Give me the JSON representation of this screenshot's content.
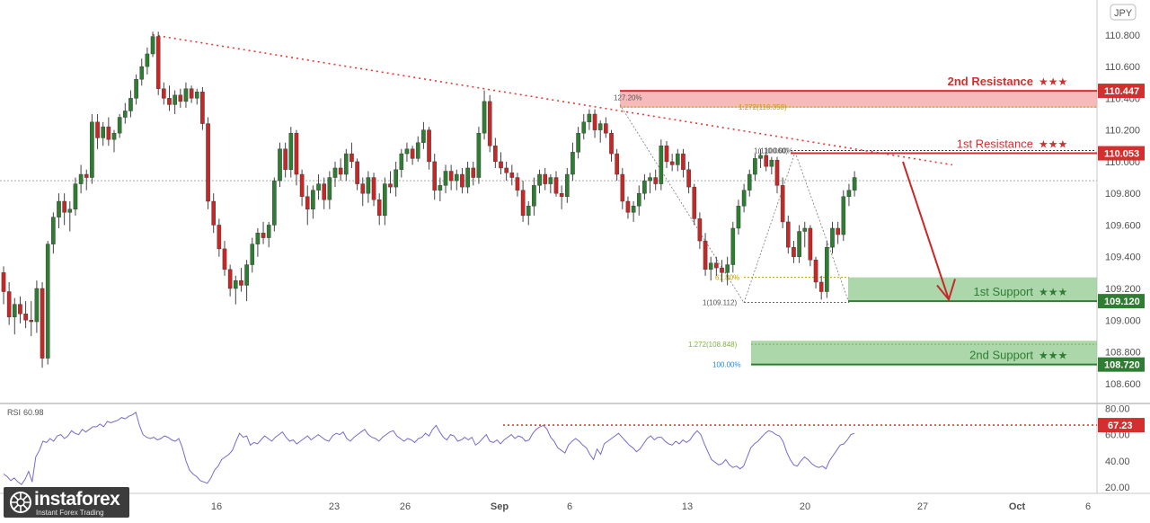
{
  "chart_data": {
    "type": "candlestick",
    "symbol_badge": "JPY",
    "currency_code": "JPY",
    "rsi_label": "RSI",
    "rsi_value": "60.98",
    "price_axis": {
      "ylim": [
        108.48,
        111.02
      ],
      "ticks": [
        "110.800",
        "110.600",
        "110.400",
        "110.200",
        "110.000",
        "109.800",
        "109.600",
        "109.400",
        "109.200",
        "109.000",
        "108.800",
        "108.600"
      ]
    },
    "rsi_axis": {
      "ylim": [
        16,
        83
      ],
      "ticks": [
        "80.00",
        "60.00",
        "40.00",
        "20.00"
      ]
    },
    "x_ticks": [
      "16",
      "23",
      "26",
      "Sep",
      "6",
      "13",
      "20",
      "27",
      "Oct",
      "6"
    ],
    "current_price": 109.88,
    "levels": [
      {
        "name": "2nd Resistance",
        "stars": "★★★",
        "price": 110.447,
        "label": "110.447",
        "color": "#d32f2f"
      },
      {
        "name": "1st Resistance",
        "stars": "★★★",
        "price": 110.053,
        "label": "110.053",
        "color": "#d32f2f"
      },
      {
        "name": "1st Support",
        "stars": "★★★",
        "price": 109.12,
        "label": "109.120",
        "color": "#2e7d32"
      },
      {
        "name": "2nd Support",
        "stars": "★★★",
        "price": 108.72,
        "label": "108.720",
        "color": "#2e7d32"
      }
    ],
    "zones": [
      {
        "from": 110.447,
        "to": 110.34,
        "color": "#f4a3a3"
      },
      {
        "from": 109.27,
        "to": 109.12,
        "color": "#8fc98f"
      },
      {
        "from": 108.87,
        "to": 108.72,
        "color": "#8fc98f"
      }
    ],
    "fib_labels": [
      {
        "text": "127.20%",
        "price": 110.405
      },
      {
        "text": "1.272(110.350)",
        "price": 110.345
      },
      {
        "text": "1(110.060)",
        "price": 110.07
      },
      {
        "text": "100.00%",
        "price": 110.07
      },
      {
        "text": "61.80%",
        "price": 109.27
      },
      {
        "text": "1(109.112)",
        "price": 109.112
      },
      {
        "text": "1.272(108.848)",
        "price": 108.848
      },
      {
        "text": "100.00%",
        "price": 108.72
      }
    ],
    "rsi_level": {
      "value": 67.23,
      "label": "67.23"
    },
    "candles": [
      [
        109.3,
        109.34,
        109.1,
        109.18
      ],
      [
        109.18,
        109.24,
        108.97,
        109.02
      ],
      [
        109.02,
        109.14,
        108.91,
        109.1
      ],
      [
        109.1,
        109.15,
        108.98,
        109.04
      ],
      [
        109.04,
        109.12,
        108.95,
        109.0
      ],
      [
        109.0,
        109.12,
        108.9,
        108.99
      ],
      [
        108.99,
        109.25,
        108.92,
        109.2
      ],
      [
        109.2,
        109.24,
        108.7,
        108.76
      ],
      [
        108.76,
        109.5,
        108.72,
        109.48
      ],
      [
        109.48,
        109.68,
        109.42,
        109.65
      ],
      [
        109.65,
        109.8,
        109.58,
        109.75
      ],
      [
        109.75,
        109.8,
        109.6,
        109.68
      ],
      [
        109.68,
        109.75,
        109.56,
        109.7
      ],
      [
        109.7,
        109.9,
        109.66,
        109.86
      ],
      [
        109.86,
        109.98,
        109.8,
        109.92
      ],
      [
        109.92,
        109.95,
        109.82,
        109.9
      ],
      [
        109.9,
        110.3,
        109.86,
        110.25
      ],
      [
        110.25,
        110.3,
        110.08,
        110.15
      ],
      [
        110.15,
        110.25,
        110.1,
        110.22
      ],
      [
        110.22,
        110.28,
        110.1,
        110.14
      ],
      [
        110.14,
        110.2,
        110.06,
        110.18
      ],
      [
        110.18,
        110.3,
        110.15,
        110.28
      ],
      [
        110.28,
        110.37,
        110.24,
        110.32
      ],
      [
        110.32,
        110.45,
        110.28,
        110.4
      ],
      [
        110.4,
        110.55,
        110.36,
        110.52
      ],
      [
        110.52,
        110.65,
        110.48,
        110.6
      ],
      [
        110.6,
        110.72,
        110.55,
        110.68
      ],
      [
        110.68,
        110.82,
        110.66,
        110.79
      ],
      [
        110.79,
        110.82,
        110.42,
        110.46
      ],
      [
        110.46,
        110.5,
        110.36,
        110.4
      ],
      [
        110.4,
        110.48,
        110.32,
        110.36
      ],
      [
        110.36,
        110.45,
        110.3,
        110.42
      ],
      [
        110.42,
        110.46,
        110.34,
        110.38
      ],
      [
        110.38,
        110.5,
        110.34,
        110.46
      ],
      [
        110.46,
        110.48,
        110.37,
        110.4
      ],
      [
        110.4,
        110.46,
        110.36,
        110.44
      ],
      [
        110.44,
        110.47,
        110.2,
        110.24
      ],
      [
        110.24,
        110.28,
        109.7,
        109.75
      ],
      [
        109.75,
        109.8,
        109.55,
        109.6
      ],
      [
        109.6,
        109.64,
        109.4,
        109.45
      ],
      [
        109.45,
        109.5,
        109.28,
        109.32
      ],
      [
        109.32,
        109.35,
        109.15,
        109.2
      ],
      [
        109.2,
        109.28,
        109.1,
        109.25
      ],
      [
        109.25,
        109.33,
        109.18,
        109.22
      ],
      [
        109.22,
        109.38,
        109.12,
        109.35
      ],
      [
        109.35,
        109.52,
        109.3,
        109.48
      ],
      [
        109.48,
        109.58,
        109.4,
        109.55
      ],
      [
        109.55,
        109.62,
        109.48,
        109.52
      ],
      [
        109.52,
        109.62,
        109.46,
        109.6
      ],
      [
        109.6,
        109.9,
        109.56,
        109.88
      ],
      [
        109.88,
        110.12,
        109.84,
        110.08
      ],
      [
        110.08,
        110.12,
        109.9,
        109.95
      ],
      [
        109.95,
        110.22,
        109.9,
        110.18
      ],
      [
        110.18,
        110.2,
        109.85,
        109.92
      ],
      [
        109.92,
        109.95,
        109.72,
        109.78
      ],
      [
        109.78,
        109.85,
        109.6,
        109.7
      ],
      [
        109.7,
        109.85,
        109.64,
        109.82
      ],
      [
        109.82,
        109.92,
        109.76,
        109.86
      ],
      [
        109.86,
        109.9,
        109.7,
        109.76
      ],
      [
        109.76,
        109.94,
        109.7,
        109.9
      ],
      [
        109.9,
        110.0,
        109.84,
        109.96
      ],
      [
        109.96,
        110.02,
        109.88,
        109.92
      ],
      [
        109.92,
        110.08,
        109.88,
        110.05
      ],
      [
        110.05,
        110.12,
        109.96,
        110.0
      ],
      [
        110.0,
        110.02,
        109.82,
        109.86
      ],
      [
        109.86,
        109.9,
        109.72,
        109.8
      ],
      [
        109.8,
        109.94,
        109.74,
        109.9
      ],
      [
        109.9,
        109.93,
        109.72,
        109.76
      ],
      [
        109.76,
        109.8,
        109.6,
        109.66
      ],
      [
        109.66,
        109.9,
        109.6,
        109.86
      ],
      [
        109.86,
        109.94,
        109.8,
        109.84
      ],
      [
        109.84,
        110.0,
        109.78,
        109.95
      ],
      [
        109.95,
        110.08,
        109.9,
        110.05
      ],
      [
        110.05,
        110.12,
        110.0,
        110.08
      ],
      [
        110.08,
        110.1,
        109.98,
        110.02
      ],
      [
        110.02,
        110.16,
        110.0,
        110.12
      ],
      [
        110.12,
        110.25,
        110.08,
        110.2
      ],
      [
        110.2,
        110.22,
        109.95,
        110.0
      ],
      [
        110.0,
        110.05,
        109.76,
        109.82
      ],
      [
        109.82,
        109.9,
        109.75,
        109.85
      ],
      [
        109.85,
        109.98,
        109.8,
        109.94
      ],
      [
        109.94,
        109.98,
        109.82,
        109.88
      ],
      [
        109.88,
        109.95,
        109.82,
        109.92
      ],
      [
        109.92,
        109.96,
        109.8,
        109.84
      ],
      [
        109.84,
        110.0,
        109.8,
        109.96
      ],
      [
        109.96,
        110.0,
        109.85,
        109.9
      ],
      [
        109.9,
        110.22,
        109.86,
        110.18
      ],
      [
        110.18,
        110.45,
        110.14,
        110.38
      ],
      [
        110.38,
        110.42,
        110.06,
        110.1
      ],
      [
        110.1,
        110.15,
        109.96,
        110.0
      ],
      [
        110.0,
        110.06,
        109.92,
        109.96
      ],
      [
        109.96,
        110.0,
        109.88,
        109.93
      ],
      [
        109.93,
        109.98,
        109.85,
        109.9
      ],
      [
        109.9,
        109.93,
        109.78,
        109.82
      ],
      [
        109.82,
        109.88,
        109.62,
        109.66
      ],
      [
        109.66,
        109.75,
        109.6,
        109.72
      ],
      [
        109.72,
        109.9,
        109.66,
        109.85
      ],
      [
        109.85,
        109.95,
        109.8,
        109.92
      ],
      [
        109.92,
        109.96,
        109.82,
        109.86
      ],
      [
        109.86,
        109.92,
        109.8,
        109.9
      ],
      [
        109.9,
        109.94,
        109.78,
        109.8
      ],
      [
        109.8,
        109.85,
        109.7,
        109.78
      ],
      [
        109.78,
        109.96,
        109.74,
        109.92
      ],
      [
        109.92,
        110.12,
        109.88,
        110.06
      ],
      [
        110.06,
        110.22,
        110.02,
        110.18
      ],
      [
        110.18,
        110.3,
        110.14,
        110.25
      ],
      [
        110.25,
        110.33,
        110.2,
        110.3
      ],
      [
        110.3,
        110.33,
        110.15,
        110.2
      ],
      [
        110.2,
        110.26,
        110.12,
        110.24
      ],
      [
        110.24,
        110.28,
        110.15,
        110.18
      ],
      [
        110.18,
        110.2,
        110.0,
        110.05
      ],
      [
        110.05,
        110.08,
        109.88,
        109.92
      ],
      [
        109.92,
        109.96,
        109.7,
        109.75
      ],
      [
        109.75,
        109.78,
        109.64,
        109.68
      ],
      [
        109.68,
        109.75,
        109.62,
        109.72
      ],
      [
        109.72,
        109.85,
        109.66,
        109.8
      ],
      [
        109.8,
        109.92,
        109.76,
        109.88
      ],
      [
        109.88,
        109.93,
        109.8,
        109.9
      ],
      [
        109.9,
        109.95,
        109.82,
        109.86
      ],
      [
        109.86,
        110.14,
        109.82,
        110.1
      ],
      [
        110.1,
        110.13,
        109.96,
        110.0
      ],
      [
        110.0,
        110.05,
        109.94,
        109.98
      ],
      [
        109.98,
        110.08,
        109.94,
        110.05
      ],
      [
        110.05,
        110.08,
        109.9,
        109.95
      ],
      [
        109.95,
        110.0,
        109.8,
        109.84
      ],
      [
        109.84,
        109.86,
        109.6,
        109.64
      ],
      [
        109.64,
        109.68,
        109.45,
        109.5
      ],
      [
        109.5,
        109.55,
        109.28,
        109.32
      ],
      [
        109.32,
        109.4,
        109.25,
        109.36
      ],
      [
        109.36,
        109.4,
        109.28,
        109.33
      ],
      [
        109.33,
        109.38,
        109.24,
        109.3
      ],
      [
        109.3,
        109.4,
        109.22,
        109.35
      ],
      [
        109.35,
        109.62,
        109.3,
        109.58
      ],
      [
        109.58,
        109.76,
        109.54,
        109.72
      ],
      [
        109.72,
        109.86,
        109.68,
        109.82
      ],
      [
        109.82,
        109.95,
        109.78,
        109.92
      ],
      [
        109.92,
        110.05,
        109.88,
        110.02
      ],
      [
        110.02,
        110.08,
        109.96,
        110.04
      ],
      [
        110.04,
        110.06,
        109.94,
        109.97
      ],
      [
        109.97,
        110.03,
        109.92,
        110.01
      ],
      [
        110.01,
        110.03,
        109.8,
        109.85
      ],
      [
        109.85,
        109.9,
        109.58,
        109.62
      ],
      [
        109.62,
        109.66,
        109.42,
        109.46
      ],
      [
        109.46,
        109.5,
        109.36,
        109.4
      ],
      [
        109.4,
        109.6,
        109.36,
        109.56
      ],
      [
        109.56,
        109.62,
        109.46,
        109.58
      ],
      [
        109.58,
        109.6,
        109.34,
        109.38
      ],
      [
        109.38,
        109.4,
        109.2,
        109.24
      ],
      [
        109.24,
        109.28,
        109.13,
        109.18
      ],
      [
        109.18,
        109.5,
        109.14,
        109.46
      ],
      [
        109.46,
        109.62,
        109.42,
        109.58
      ],
      [
        109.58,
        109.62,
        109.48,
        109.54
      ],
      [
        109.54,
        109.82,
        109.5,
        109.78
      ],
      [
        109.78,
        109.86,
        109.72,
        109.82
      ],
      [
        109.82,
        109.94,
        109.78,
        109.9
      ]
    ],
    "rsi": [
      30,
      28,
      25,
      27,
      24,
      22,
      26,
      32,
      24,
      43,
      48,
      55,
      54,
      57,
      55,
      59,
      60,
      57,
      59,
      63,
      61,
      60,
      64,
      62,
      64,
      66,
      66,
      68,
      66,
      70,
      69,
      70,
      71,
      73,
      72,
      74,
      75,
      77,
      67,
      60,
      58,
      57,
      58,
      56,
      57,
      59,
      58,
      56,
      55,
      57,
      50,
      40,
      33,
      30,
      28,
      25,
      24,
      23,
      27,
      33,
      36,
      41,
      43,
      45,
      48,
      55,
      61,
      58,
      59,
      52,
      54,
      53,
      56,
      59,
      57,
      55,
      58,
      60,
      62,
      58,
      55,
      56,
      53,
      55,
      57,
      59,
      56,
      58,
      60,
      58,
      56,
      55,
      59,
      61,
      60,
      62,
      57,
      55,
      58,
      60,
      62,
      64,
      60,
      58,
      57,
      55,
      58,
      60,
      62,
      63,
      59,
      57,
      55,
      57,
      56,
      54,
      57,
      58,
      61,
      59,
      64,
      67,
      62,
      58,
      56,
      60,
      59,
      55,
      56,
      58,
      56,
      58,
      52,
      54,
      57,
      60,
      55,
      54,
      56,
      53,
      56,
      58,
      60,
      57,
      59,
      58,
      55,
      56,
      61,
      64,
      66,
      67,
      64,
      58,
      55,
      50,
      48,
      46,
      52,
      55,
      57,
      55,
      52,
      50,
      45,
      41,
      49,
      45,
      53,
      55,
      57,
      59,
      61,
      58,
      55,
      52,
      50,
      47,
      49,
      53,
      57,
      59,
      56,
      58,
      58,
      55,
      53,
      52,
      55,
      53,
      56,
      54,
      56,
      60,
      63,
      60,
      53,
      47,
      41,
      39,
      37,
      38,
      41,
      37,
      35,
      36,
      34,
      36,
      43,
      50,
      53,
      55,
      58,
      61,
      63,
      62,
      60,
      59,
      55,
      47,
      41,
      37,
      36,
      40,
      43,
      41,
      38,
      36,
      35,
      36,
      34,
      40,
      44,
      48,
      52,
      53,
      56,
      60,
      61
    ]
  }
}
